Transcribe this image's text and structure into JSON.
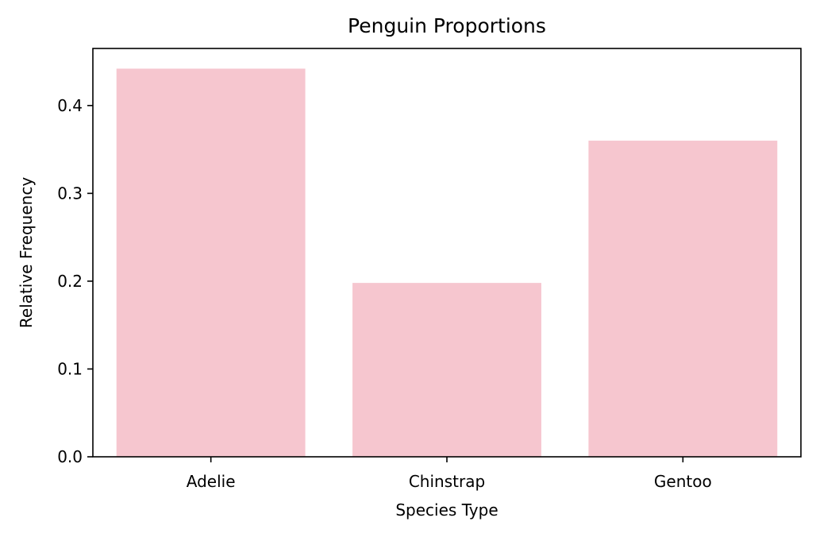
{
  "chart_data": {
    "type": "bar",
    "title": "Penguin Proportions",
    "xlabel": "Species Type",
    "ylabel": "Relative Frequency",
    "categories": [
      "Adelie",
      "Chinstrap",
      "Gentoo"
    ],
    "values": [
      0.442,
      0.198,
      0.36
    ],
    "ylim": [
      0,
      0.465
    ],
    "yticks": [
      0.0,
      0.1,
      0.2,
      0.3,
      0.4
    ],
    "ytick_labels": [
      "0.0",
      "0.1",
      "0.2",
      "0.3",
      "0.4"
    ],
    "grid": false,
    "bar_color": "#f6c6cf",
    "axis_color": "#000000"
  }
}
